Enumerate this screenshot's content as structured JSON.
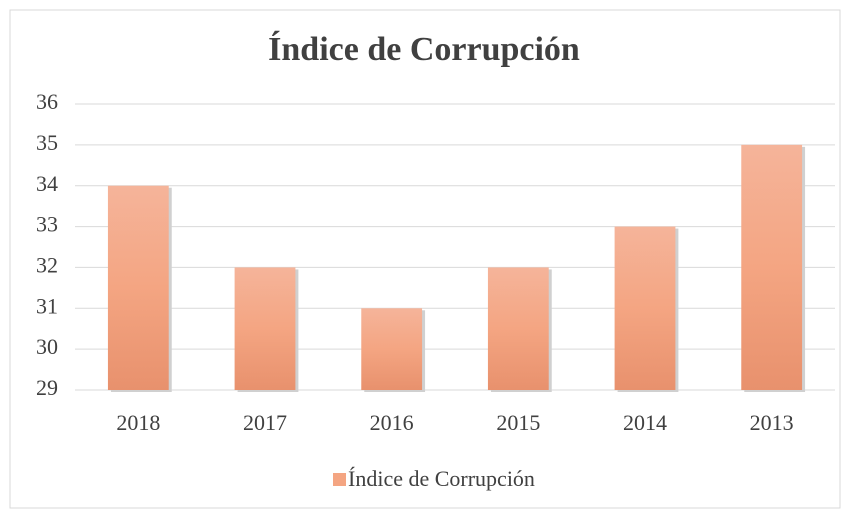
{
  "chart_data": {
    "type": "bar",
    "title": "Índice de Corrupción",
    "categories": [
      "2018",
      "2017",
      "2016",
      "2015",
      "2014",
      "2013"
    ],
    "series": [
      {
        "name": "Índice de Corrupción",
        "color": "#f4a582",
        "values": [
          34,
          32,
          31,
          32,
          33,
          35
        ]
      }
    ],
    "ylim": [
      29,
      36
    ],
    "yticks": [
      29,
      30,
      31,
      32,
      33,
      34,
      35,
      36
    ],
    "grid": true,
    "legend": "bottom"
  }
}
